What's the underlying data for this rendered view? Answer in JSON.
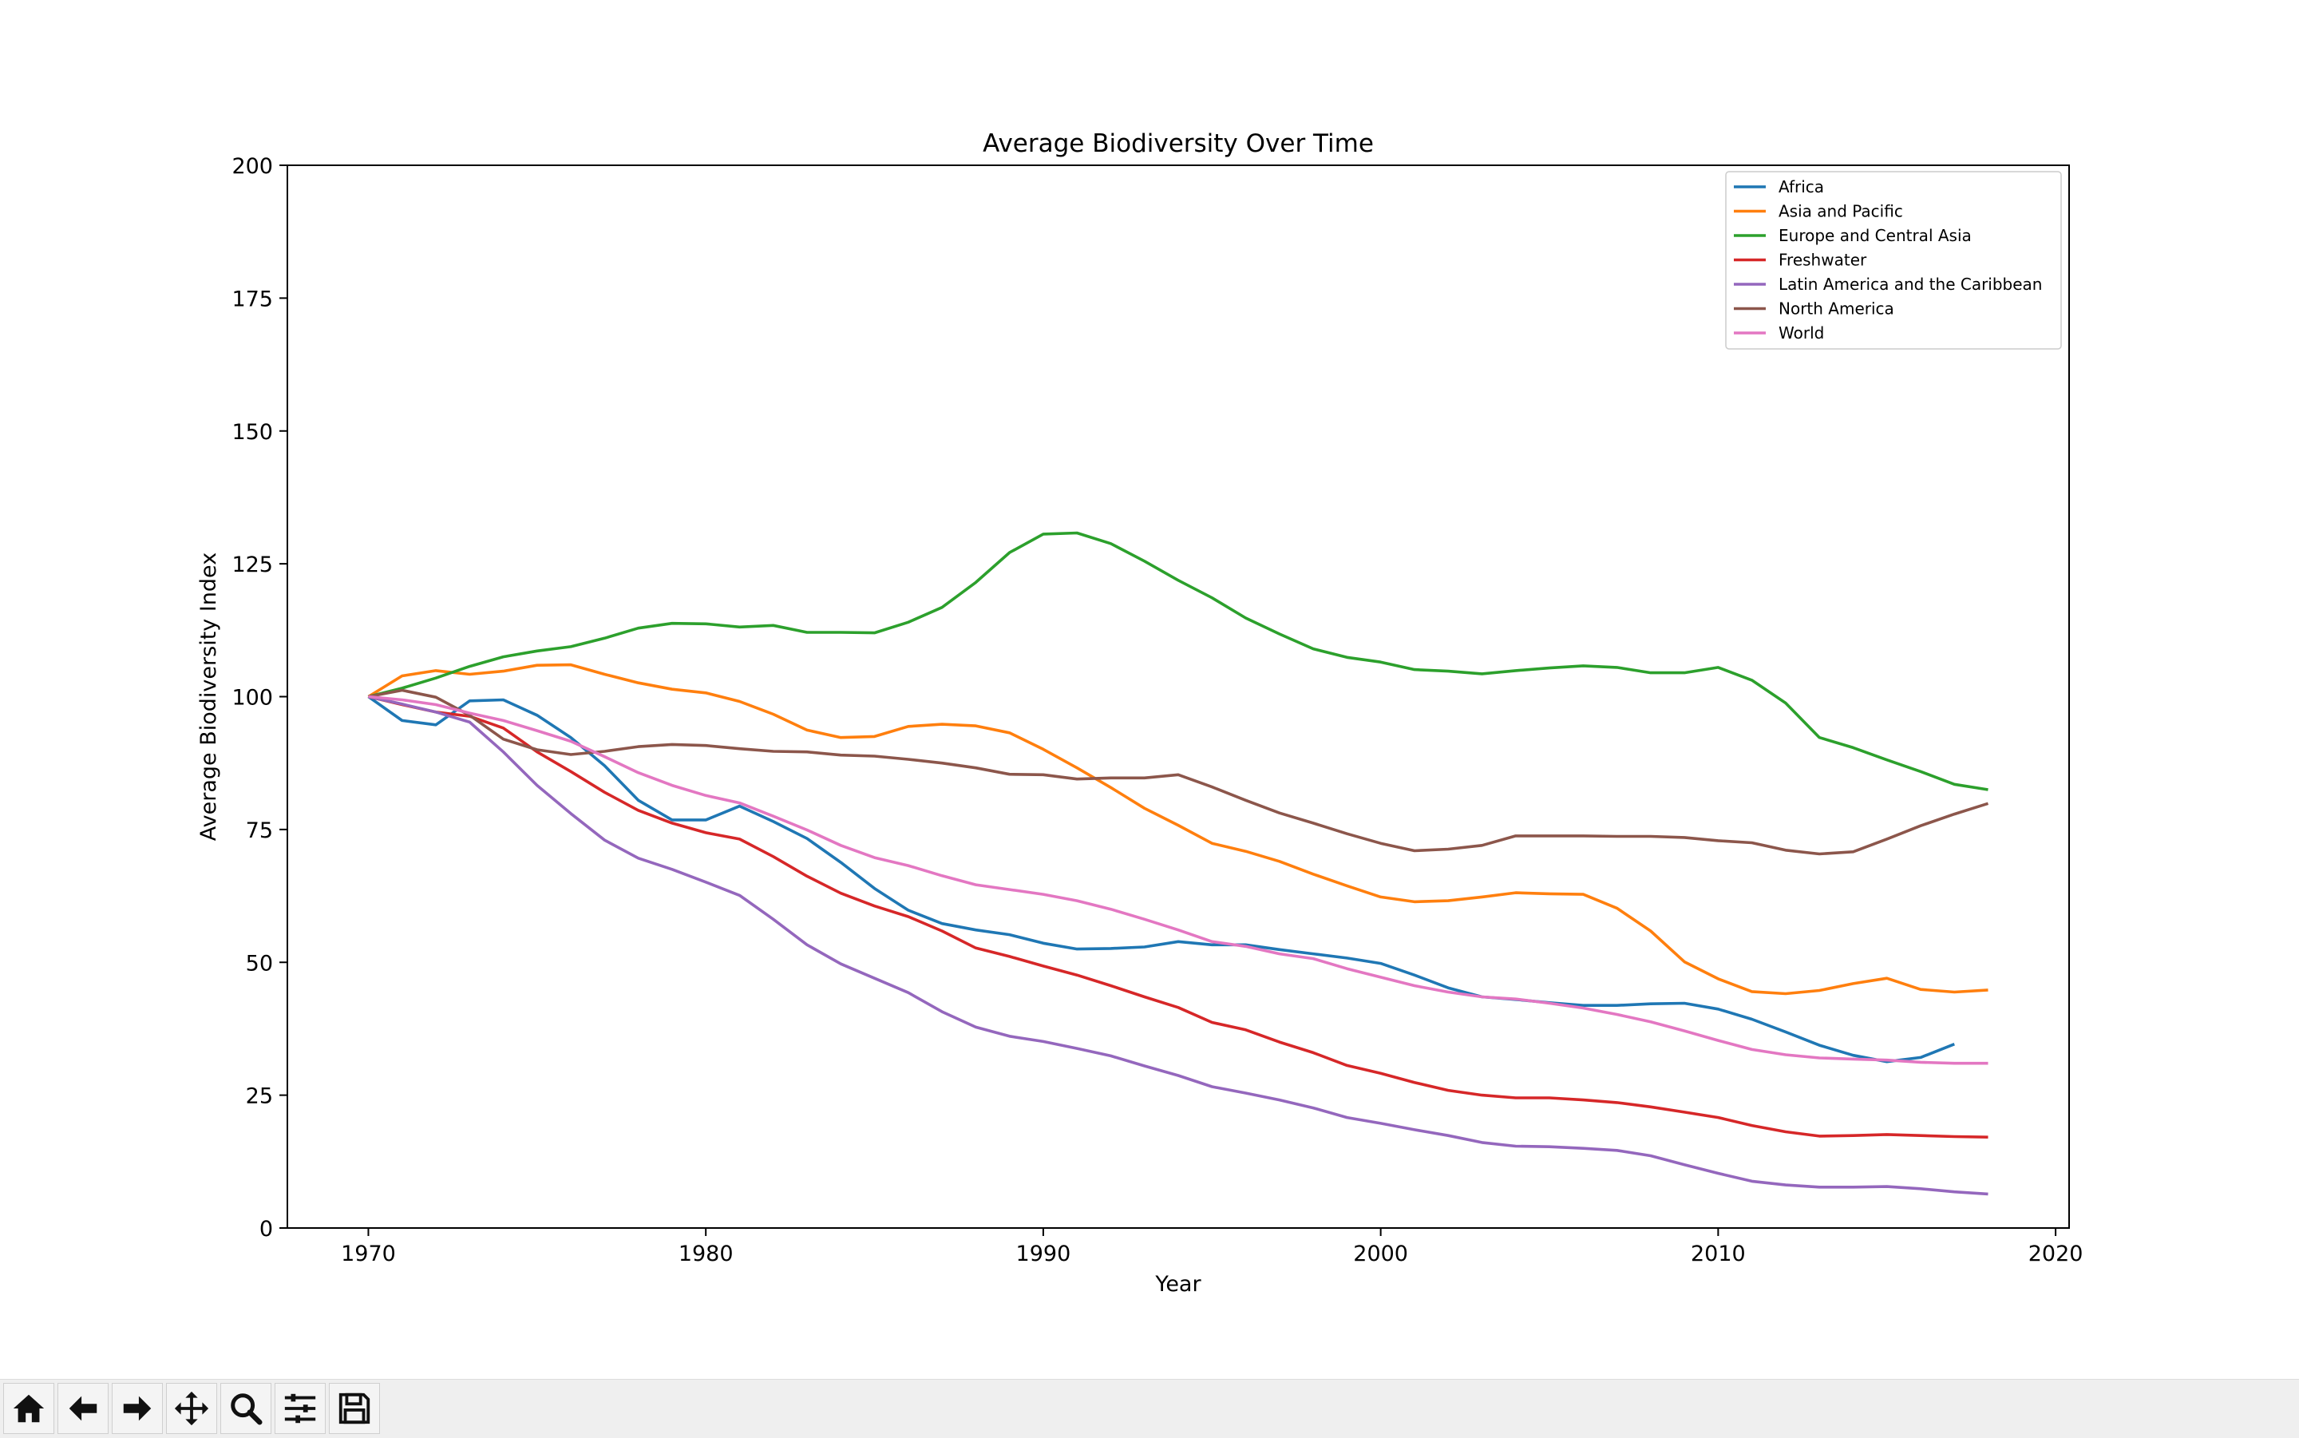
{
  "chart_data": {
    "type": "line",
    "title": "Average Biodiversity Over Time",
    "xlabel": "Year",
    "ylabel": "Average Biodiversity Index",
    "xlim": [
      1967.6,
      2020.4
    ],
    "ylim": [
      0,
      200
    ],
    "xticks": [
      1970,
      1980,
      1990,
      2000,
      2010,
      2020
    ],
    "yticks": [
      0,
      25,
      50,
      75,
      100,
      125,
      150,
      175,
      200
    ],
    "grid": false,
    "legend_position": "top-right",
    "x": [
      1970,
      1971,
      1972,
      1973,
      1974,
      1975,
      1976,
      1977,
      1978,
      1979,
      1980,
      1981,
      1982,
      1983,
      1984,
      1985,
      1986,
      1987,
      1988,
      1989,
      1990,
      1991,
      1992,
      1993,
      1994,
      1995,
      1996,
      1997,
      1998,
      1999,
      2000,
      2001,
      2002,
      2003,
      2004,
      2005,
      2006,
      2007,
      2008,
      2009,
      2010,
      2011,
      2012,
      2013,
      2014,
      2015,
      2016,
      2017,
      2018
    ],
    "series": [
      {
        "name": "Africa",
        "color": "#1f77b4",
        "values": [
          100,
          95.5,
          94.7,
          99.2,
          99.4,
          96.5,
          92.3,
          87,
          80.5,
          76.8,
          76.8,
          79.4,
          76.5,
          73.3,
          68.8,
          63.9,
          59.8,
          57.3,
          56.1,
          55.2,
          53.6,
          52.5,
          52.6,
          52.9,
          53.9,
          53.3,
          53.3,
          52.4,
          51.6,
          50.8,
          49.8,
          47.6,
          45.2,
          43.5,
          43,
          42.4,
          41.9,
          41.9,
          42.2,
          42.3,
          41.2,
          39.3,
          36.9,
          34.4,
          32.5,
          31.3,
          32.1,
          34.6,
          null
        ]
      },
      {
        "name": "Asia and Pacific",
        "color": "#ff7f0e",
        "values": [
          100,
          103.9,
          104.9,
          104.2,
          104.8,
          105.9,
          106,
          104.2,
          102.6,
          101.4,
          100.7,
          99.1,
          96.7,
          93.7,
          92.3,
          92.5,
          94.4,
          94.8,
          94.5,
          93.2,
          90.1,
          86.6,
          82.9,
          79,
          75.8,
          72.4,
          70.9,
          69,
          66.6,
          64.4,
          62.3,
          61.4,
          61.6,
          62.3,
          63.1,
          62.9,
          62.8,
          60.2,
          55.9,
          50.1,
          46.9,
          44.5,
          44.1,
          44.7,
          46,
          47,
          44.9,
          44.4,
          44.8
        ]
      },
      {
        "name": "Europe and Central Asia",
        "color": "#2ca02c",
        "values": [
          100,
          101.6,
          103.5,
          105.7,
          107.5,
          108.6,
          109.4,
          111,
          112.9,
          113.8,
          113.7,
          113.1,
          113.4,
          112.1,
          112.1,
          112,
          114,
          116.8,
          121.5,
          127.1,
          130.6,
          130.8,
          128.8,
          125.5,
          121.9,
          118.6,
          114.8,
          111.8,
          109,
          107.4,
          106.5,
          105.1,
          104.8,
          104.3,
          104.9,
          105.4,
          105.8,
          105.5,
          104.5,
          104.5,
          105.5,
          103.1,
          98.8,
          92.3,
          90.4,
          88.1,
          85.9,
          83.5,
          82.5
        ]
      },
      {
        "name": "Freshwater",
        "color": "#d62728",
        "values": [
          100,
          98.5,
          97.1,
          96.3,
          94.1,
          89.6,
          85.9,
          82,
          78.6,
          76.2,
          74.4,
          73.2,
          69.9,
          66.2,
          63,
          60.6,
          58.6,
          55.9,
          52.7,
          51.1,
          49.3,
          47.6,
          45.6,
          43.5,
          41.5,
          38.7,
          37.3,
          35,
          33,
          30.6,
          29.1,
          27.4,
          25.9,
          25,
          24.5,
          24.5,
          24.1,
          23.6,
          22.8,
          21.8,
          20.8,
          19.3,
          18.1,
          17.3,
          17.4,
          17.6,
          17.4,
          17.2,
          17.1
        ]
      },
      {
        "name": "Latin America and the Caribbean",
        "color": "#9467bd",
        "values": [
          100,
          98.6,
          97.1,
          95.2,
          89.6,
          83.3,
          78,
          73,
          69.6,
          67.5,
          65.1,
          62.6,
          58.1,
          53.3,
          49.7,
          47,
          44.3,
          40.7,
          37.8,
          36.1,
          35.1,
          33.8,
          32.4,
          30.5,
          28.7,
          26.6,
          25.4,
          24.1,
          22.6,
          20.8,
          19.7,
          18.5,
          17.4,
          16.1,
          15.4,
          15.3,
          15,
          14.6,
          13.6,
          11.9,
          10.3,
          8.8,
          8.1,
          7.7,
          7.7,
          7.8,
          7.4,
          6.8,
          6.4
        ]
      },
      {
        "name": "North America",
        "color": "#8c564b",
        "values": [
          100,
          101.2,
          99.9,
          96.5,
          92,
          90,
          89.1,
          89.7,
          90.6,
          91,
          90.8,
          90.2,
          89.7,
          89.6,
          89,
          88.8,
          88.2,
          87.5,
          86.6,
          85.4,
          85.3,
          84.5,
          84.7,
          84.7,
          85.3,
          83,
          80.5,
          78.1,
          76.2,
          74.2,
          72.4,
          71,
          71.3,
          72,
          73.8,
          73.8,
          73.8,
          73.7,
          73.7,
          73.5,
          72.9,
          72.5,
          71.1,
          70.4,
          70.8,
          73.2,
          75.7,
          77.9,
          79.9
        ]
      },
      {
        "name": "World",
        "color": "#e377c2",
        "values": [
          100,
          99.4,
          98.5,
          96.9,
          95.5,
          93.6,
          91.6,
          88.7,
          85.7,
          83.3,
          81.4,
          80,
          77.5,
          74.9,
          72,
          69.7,
          68.2,
          66.3,
          64.6,
          63.7,
          62.8,
          61.6,
          60,
          58.1,
          56.1,
          53.9,
          53,
          51.6,
          50.7,
          48.8,
          47.2,
          45.6,
          44.4,
          43.5,
          43.1,
          42.3,
          41.4,
          40.2,
          38.8,
          37.1,
          35.3,
          33.6,
          32.6,
          32,
          31.8,
          31.6,
          31.2,
          31,
          31
        ]
      }
    ]
  },
  "toolbar": {
    "icons": [
      "home-icon",
      "back-icon",
      "forward-icon",
      "pan-icon",
      "zoom-icon",
      "configure-subplots-icon",
      "save-icon"
    ]
  }
}
